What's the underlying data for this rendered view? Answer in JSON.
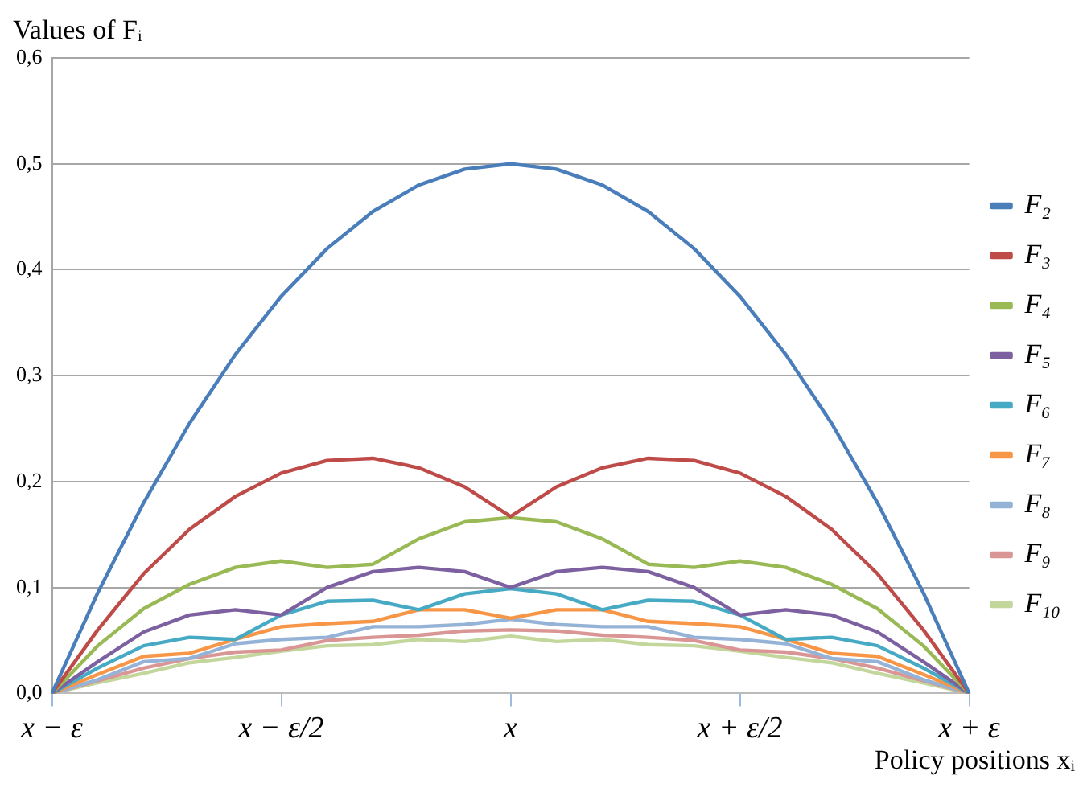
{
  "chart_data": {
    "type": "line",
    "ylabel": "Values of Fᵢ",
    "xlabel": "Policy positions xᵢ",
    "categories": [
      "x − ε",
      null,
      null,
      null,
      null,
      "x − ε/2",
      null,
      null,
      null,
      null,
      "x",
      null,
      null,
      null,
      null,
      "x + ε/2",
      null,
      null,
      null,
      null,
      "x + ε"
    ],
    "ylim": [
      0,
      0.6
    ],
    "yticks": [
      {
        "value": 0,
        "label": "0,0"
      },
      {
        "value": 0.1,
        "label": "0,1"
      },
      {
        "value": 0.2,
        "label": "0,2"
      },
      {
        "value": 0.3,
        "label": "0,3"
      },
      {
        "value": 0.4,
        "label": "0,4"
      },
      {
        "value": 0.5,
        "label": "0,5"
      },
      {
        "value": 0.6,
        "label": "0,6"
      }
    ],
    "grid": "y",
    "legend": "right",
    "marker": "none",
    "line_style": "solid",
    "series": [
      {
        "name": "F₂",
        "color": "#4a7ebb",
        "values": [
          0,
          0.095,
          0.18,
          0.255,
          0.32,
          0.375,
          0.42,
          0.455,
          0.48,
          0.495,
          0.5,
          0.495,
          0.48,
          0.455,
          0.42,
          0.375,
          0.32,
          0.255,
          0.18,
          0.095,
          0
        ]
      },
      {
        "name": "F₃",
        "color": "#be4b48",
        "values": [
          0,
          0.06,
          0.113,
          0.155,
          0.186,
          0.208,
          0.22,
          0.222,
          0.213,
          0.195,
          0.167,
          0.195,
          0.213,
          0.222,
          0.22,
          0.208,
          0.186,
          0.155,
          0.113,
          0.06,
          0
        ]
      },
      {
        "name": "F₄",
        "color": "#98b954",
        "values": [
          0,
          0.045,
          0.08,
          0.103,
          0.119,
          0.125,
          0.119,
          0.122,
          0.146,
          0.162,
          0.166,
          0.162,
          0.146,
          0.122,
          0.119,
          0.125,
          0.119,
          0.103,
          0.08,
          0.045,
          0
        ]
      },
      {
        "name": "F₅",
        "color": "#7d60a0",
        "values": [
          0,
          0.03,
          0.058,
          0.074,
          0.079,
          0.074,
          0.1,
          0.115,
          0.119,
          0.115,
          0.1,
          0.115,
          0.119,
          0.115,
          0.1,
          0.074,
          0.079,
          0.074,
          0.058,
          0.03,
          0
        ]
      },
      {
        "name": "F₆",
        "color": "#46aac5",
        "values": [
          0,
          0.024,
          0.045,
          0.053,
          0.051,
          0.074,
          0.087,
          0.088,
          0.079,
          0.094,
          0.099,
          0.094,
          0.079,
          0.088,
          0.087,
          0.074,
          0.051,
          0.053,
          0.045,
          0.024,
          0
        ]
      },
      {
        "name": "F₇",
        "color": "#f79646",
        "values": [
          0,
          0.018,
          0.035,
          0.038,
          0.051,
          0.063,
          0.066,
          0.068,
          0.079,
          0.079,
          0.071,
          0.079,
          0.079,
          0.068,
          0.066,
          0.063,
          0.051,
          0.038,
          0.035,
          0.018,
          0
        ]
      },
      {
        "name": "F₈",
        "color": "#95b3d7",
        "values": [
          0,
          0.013,
          0.03,
          0.033,
          0.047,
          0.051,
          0.053,
          0.063,
          0.063,
          0.065,
          0.07,
          0.065,
          0.063,
          0.063,
          0.053,
          0.051,
          0.047,
          0.033,
          0.03,
          0.013,
          0
        ]
      },
      {
        "name": "F₉",
        "color": "#d99694",
        "values": [
          0,
          0.012,
          0.024,
          0.033,
          0.039,
          0.041,
          0.05,
          0.053,
          0.055,
          0.059,
          0.06,
          0.059,
          0.055,
          0.053,
          0.05,
          0.041,
          0.039,
          0.033,
          0.024,
          0.012,
          0
        ]
      },
      {
        "name": "F₁₀",
        "color": "#c3d69b",
        "values": [
          0,
          0.01,
          0.019,
          0.029,
          0.034,
          0.04,
          0.045,
          0.046,
          0.051,
          0.049,
          0.054,
          0.049,
          0.051,
          0.046,
          0.045,
          0.04,
          0.034,
          0.029,
          0.019,
          0.01,
          0
        ]
      }
    ]
  }
}
